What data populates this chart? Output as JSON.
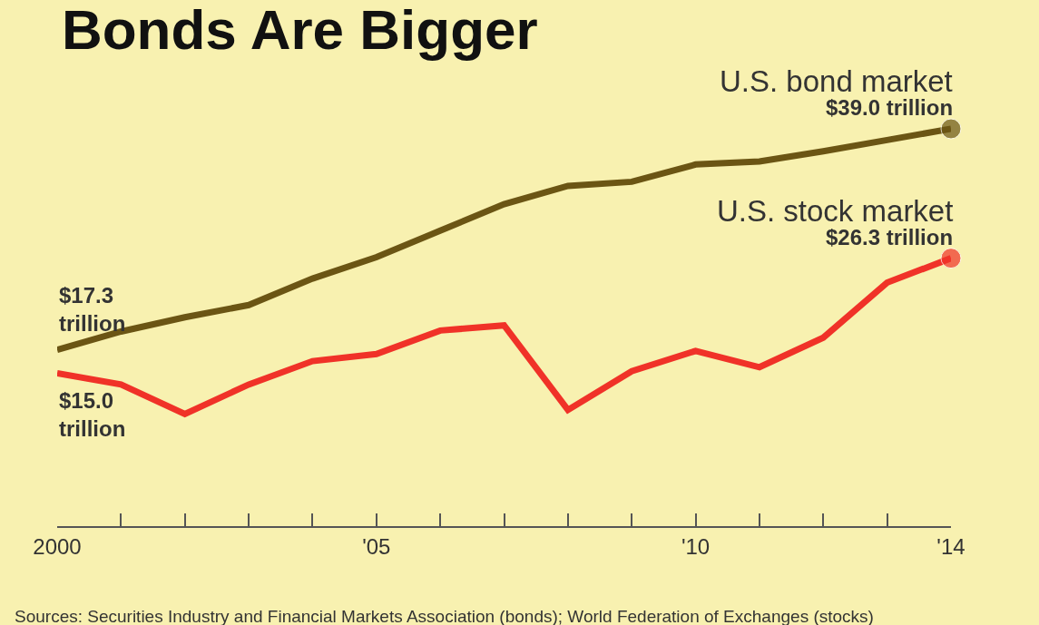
{
  "chart_data": {
    "type": "line",
    "title": "Bonds Are Bigger",
    "x": [
      2000,
      2001,
      2002,
      2003,
      2004,
      2005,
      2006,
      2007,
      2008,
      2009,
      2010,
      2011,
      2012,
      2013,
      2014
    ],
    "series": [
      {
        "name": "U.S. bond market",
        "color": "#6b5514",
        "values": [
          17.3,
          19.1,
          20.5,
          21.7,
          24.3,
          26.4,
          29.0,
          31.6,
          33.4,
          33.8,
          35.5,
          35.8,
          36.8,
          37.9,
          39.0
        ],
        "value_labels": [
          "$17.3 trillion",
          null,
          null,
          null,
          null,
          null,
          null,
          null,
          null,
          null,
          null,
          null,
          null,
          null,
          "$39.0 trillion"
        ]
      },
      {
        "name": "U.S. stock market",
        "color": "#f03228",
        "values": [
          15.0,
          13.9,
          11.0,
          13.9,
          16.2,
          16.9,
          19.2,
          19.7,
          11.4,
          15.2,
          17.2,
          15.6,
          18.5,
          23.9,
          26.3
        ],
        "value_labels": [
          "$15.0 trillion",
          null,
          null,
          null,
          null,
          null,
          null,
          null,
          null,
          null,
          null,
          null,
          null,
          null,
          "$26.3 trillion"
        ]
      }
    ],
    "xlim": [
      2000,
      2014
    ],
    "xticks": [
      2000,
      {
        "value": 2001,
        "label": null
      },
      {
        "value": 2002,
        "label": null
      },
      {
        "value": 2003,
        "label": null
      },
      {
        "value": 2004,
        "label": null
      },
      {
        "value": 2005,
        "label": "'05"
      },
      {
        "value": 2006,
        "label": null
      },
      {
        "value": 2007,
        "label": null
      },
      {
        "value": 2008,
        "label": null
      },
      {
        "value": 2009,
        "label": null
      },
      {
        "value": 2010,
        "label": "'10"
      },
      {
        "value": 2011,
        "label": null
      },
      {
        "value": 2012,
        "label": null
      },
      {
        "value": 2013,
        "label": null
      },
      {
        "value": 2014,
        "label": "'14"
      }
    ],
    "tick_labels": "x",
    "grid": false,
    "legend": false,
    "line_style": "solid",
    "annotations": [
      "Sources: Securities Industry and Financial Markets Association (bonds); World Federation of Exchanges (stocks)"
    ]
  }
}
